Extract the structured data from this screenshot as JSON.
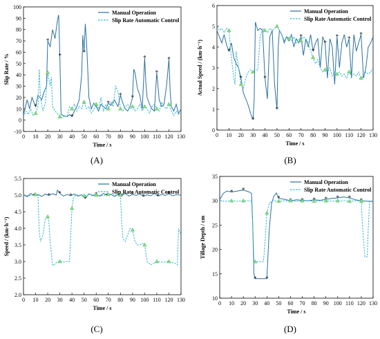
{
  "figure": {
    "panel_labels": [
      "(A)",
      "(B)",
      "(C)",
      "(D)"
    ]
  },
  "colors": {
    "manual": "#2a6f9e",
    "auto": "#35b6d4",
    "marker_manual": "#c0224f",
    "marker_auto": "#7ddc7d"
  },
  "legend": {
    "manual": "Manual Operation",
    "auto": "Slip Rate Automatic Control"
  },
  "chart_data": [
    {
      "type": "line",
      "panel": "(A)",
      "title": "",
      "xlabel": "Time / s",
      "ylabel": "Slip Rate / %",
      "xlim": [
        0,
        130
      ],
      "ylim": [
        -10,
        100
      ],
      "xticks": [
        0,
        10,
        20,
        30,
        40,
        50,
        60,
        70,
        80,
        90,
        100,
        110,
        120,
        130
      ],
      "yticks": [
        -10,
        0,
        10,
        20,
        30,
        40,
        50,
        60,
        70,
        80,
        90,
        100
      ],
      "legend_position": "top-right",
      "series": [
        {
          "name": "Manual Operation",
          "x": [
            0,
            3,
            5,
            7,
            10,
            12,
            15,
            17,
            19,
            20,
            22,
            24,
            26,
            28,
            29,
            30,
            31,
            33,
            36,
            38,
            40,
            42,
            44,
            46,
            48,
            49,
            50,
            51,
            52,
            54,
            56,
            58,
            60,
            62,
            64,
            66,
            68,
            70,
            72,
            75,
            78,
            80,
            82,
            84,
            86,
            88,
            90,
            91,
            92,
            94,
            96,
            98,
            100,
            101,
            102,
            104,
            106,
            108,
            110,
            112,
            114,
            116,
            118,
            120,
            121,
            122,
            124,
            126,
            128,
            130
          ],
          "y": [
            5,
            18,
            10,
            20,
            12,
            22,
            18,
            25,
            30,
            70,
            65,
            80,
            72,
            88,
            93,
            57,
            5,
            4,
            3,
            5,
            3,
            8,
            12,
            18,
            40,
            75,
            60,
            85,
            70,
            20,
            10,
            15,
            12,
            8,
            14,
            12,
            10,
            15,
            13,
            18,
            12,
            22,
            15,
            10,
            8,
            12,
            20,
            45,
            42,
            28,
            22,
            10,
            55,
            33,
            20,
            14,
            10,
            8,
            42,
            18,
            12,
            14,
            30,
            54,
            26,
            12,
            8,
            14,
            6,
            10
          ]
        },
        {
          "name": "Slip Rate Automatic Control",
          "x": [
            0,
            2,
            4,
            6,
            8,
            10,
            12,
            13,
            14,
            16,
            18,
            20,
            22,
            23,
            24,
            26,
            28,
            30,
            32,
            34,
            36,
            38,
            40,
            42,
            44,
            46,
            48,
            50,
            52,
            54,
            56,
            58,
            60,
            62,
            64,
            66,
            68,
            70,
            72,
            74,
            76,
            78,
            80,
            82,
            84,
            86,
            88,
            90,
            92,
            94,
            96,
            98,
            100,
            102,
            104,
            106,
            108,
            110,
            112,
            114,
            116,
            118,
            120,
            122,
            124,
            126,
            128,
            130
          ],
          "y": [
            3,
            8,
            5,
            10,
            4,
            6,
            12,
            45,
            20,
            8,
            15,
            42,
            30,
            38,
            12,
            8,
            6,
            3,
            2,
            4,
            3,
            12,
            10,
            14,
            8,
            12,
            10,
            16,
            10,
            12,
            6,
            9,
            14,
            10,
            20,
            8,
            14,
            10,
            16,
            12,
            30,
            25,
            10,
            8,
            12,
            14,
            10,
            12,
            8,
            10,
            14,
            8,
            12,
            10,
            6,
            12,
            14,
            10,
            8,
            16,
            12,
            10,
            14,
            8,
            4,
            8,
            5,
            6
          ]
        }
      ]
    },
    {
      "type": "line",
      "panel": "(B)",
      "title": "",
      "xlabel": "Time / s",
      "ylabel": "Actual Speed / (km·h⁻¹)",
      "xlim": [
        0,
        130
      ],
      "ylim": [
        0,
        6
      ],
      "xticks": [
        0,
        10,
        20,
        30,
        40,
        50,
        60,
        70,
        80,
        90,
        100,
        110,
        120,
        130
      ],
      "yticks": [
        0,
        1,
        2,
        3,
        4,
        5,
        6
      ],
      "legend_position": "top-right",
      "series": [
        {
          "name": "Manual Operation",
          "x": [
            0,
            2,
            4,
            6,
            8,
            10,
            12,
            14,
            16,
            18,
            20,
            22,
            24,
            26,
            28,
            30,
            31,
            32,
            34,
            36,
            38,
            40,
            42,
            44,
            46,
            48,
            50,
            51,
            52,
            54,
            56,
            58,
            60,
            62,
            64,
            66,
            68,
            70,
            72,
            74,
            76,
            78,
            80,
            82,
            84,
            86,
            88,
            90,
            92,
            94,
            96,
            98,
            100,
            102,
            104,
            106,
            108,
            110,
            112,
            114,
            116,
            118,
            120,
            122,
            124,
            126,
            128,
            130
          ],
          "y": [
            4.8,
            4.5,
            4.2,
            4.6,
            4.1,
            3.8,
            4.2,
            3.5,
            3.2,
            3.0,
            2.5,
            1.8,
            1.5,
            1.2,
            0.8,
            0.5,
            1.5,
            5.2,
            4.8,
            4.9,
            4.8,
            2.5,
            1.5,
            4.5,
            4.8,
            2.2,
            1.0,
            4.0,
            4.8,
            4.6,
            4.2,
            4.5,
            4.3,
            4.6,
            4.0,
            4.4,
            4.2,
            4.5,
            3.6,
            4.4,
            4.0,
            4.6,
            3.8,
            4.2,
            4.4,
            3.0,
            4.5,
            4.2,
            2.5,
            4.4,
            4.0,
            2.2,
            4.5,
            3.0,
            4.2,
            4.6,
            4.0,
            4.4,
            2.5,
            4.6,
            3.8,
            4.2,
            4.6,
            2.5,
            3.0,
            4.0,
            4.2,
            4.5
          ]
        },
        {
          "name": "Slip Rate Automatic Control",
          "x": [
            0,
            2,
            4,
            6,
            8,
            10,
            12,
            14,
            15,
            16,
            18,
            20,
            22,
            24,
            26,
            28,
            30,
            32,
            34,
            36,
            38,
            40,
            42,
            44,
            46,
            48,
            50,
            52,
            54,
            56,
            58,
            60,
            62,
            64,
            66,
            68,
            70,
            72,
            74,
            76,
            78,
            80,
            82,
            84,
            86,
            88,
            90,
            92,
            94,
            96,
            98,
            100,
            102,
            104,
            106,
            108,
            110,
            112,
            114,
            116,
            118,
            120,
            122,
            124,
            126,
            128,
            130
          ],
          "y": [
            5.0,
            4.8,
            4.9,
            4.7,
            4.9,
            4.8,
            3.5,
            2.5,
            2.2,
            3.8,
            3.0,
            2.2,
            2.0,
            2.5,
            2.8,
            2.9,
            2.8,
            2.9,
            2.9,
            4.5,
            4.9,
            4.8,
            4.7,
            4.9,
            4.8,
            4.9,
            5.0,
            4.8,
            4.6,
            4.3,
            4.5,
            4.4,
            4.3,
            4.5,
            4.2,
            4.4,
            4.3,
            4.5,
            4.4,
            4.2,
            3.8,
            3.5,
            3.2,
            3.4,
            3.0,
            2.8,
            2.9,
            2.8,
            3.0,
            2.6,
            2.8,
            2.7,
            2.8,
            2.6,
            2.7,
            2.5,
            2.8,
            2.6,
            2.7,
            2.6,
            2.8,
            2.5,
            2.6,
            2.8,
            2.7,
            2.8,
            3.0
          ]
        }
      ]
    },
    {
      "type": "line",
      "panel": "(C)",
      "title": "",
      "xlabel": "Time / s",
      "ylabel": "Speed / (km·h⁻¹)",
      "xlim": [
        0,
        130
      ],
      "ylim": [
        2.0,
        5.5
      ],
      "xticks": [
        0,
        10,
        20,
        30,
        40,
        50,
        60,
        70,
        80,
        90,
        100,
        110,
        120,
        130
      ],
      "yticks": [
        2.0,
        2.5,
        3.0,
        3.5,
        4.0,
        4.5,
        5.0,
        5.5
      ],
      "legend_position": "top-right",
      "series": [
        {
          "name": "Manual Operation",
          "x": [
            0,
            3,
            6,
            9,
            12,
            15,
            18,
            21,
            24,
            27,
            28,
            30,
            33,
            36,
            39,
            42,
            45,
            48,
            51,
            54,
            57,
            60,
            63,
            66,
            69,
            72,
            75,
            78,
            81,
            84,
            87,
            90,
            93,
            96,
            99,
            102,
            105,
            108,
            111,
            114,
            117,
            120,
            123,
            126,
            130
          ],
          "y": [
            5.0,
            4.95,
            5.05,
            4.98,
            5.02,
            4.96,
            5.03,
            4.99,
            5.04,
            5.0,
            5.15,
            5.05,
            4.97,
            5.02,
            4.98,
            5.03,
            4.97,
            5.01,
            4.9,
            5.04,
            4.98,
            5.02,
            4.97,
            5.05,
            4.99,
            5.03,
            4.96,
            5.02,
            4.98,
            5.05,
            4.97,
            5.02,
            4.99,
            5.04,
            4.96,
            5.01,
            4.98,
            5.05,
            4.97,
            5.02,
            4.99,
            5.04,
            4.98,
            5.01,
            5.0
          ]
        },
        {
          "name": "Slip Rate Automatic Control",
          "x": [
            0,
            5,
            10,
            12,
            13,
            14,
            16,
            18,
            20,
            21,
            22,
            24,
            26,
            28,
            30,
            32,
            34,
            36,
            38,
            40,
            41,
            43,
            46,
            50,
            55,
            60,
            65,
            70,
            75,
            80,
            81,
            82,
            84,
            86,
            88,
            90,
            92,
            94,
            96,
            98,
            100,
            102,
            105,
            110,
            115,
            120,
            125,
            127,
            128,
            130
          ],
          "y": [
            5.0,
            4.98,
            5.02,
            5.0,
            3.9,
            3.6,
            3.8,
            4.3,
            4.35,
            4.2,
            3.6,
            2.88,
            2.92,
            3.0,
            3.0,
            3.0,
            2.98,
            3.0,
            3.0,
            4.6,
            4.9,
            5.0,
            5.0,
            4.98,
            5.02,
            5.0,
            4.98,
            5.02,
            5.0,
            5.0,
            4.2,
            3.7,
            3.6,
            3.8,
            4.0,
            3.95,
            3.6,
            3.5,
            3.5,
            3.55,
            3.5,
            3.0,
            2.9,
            3.0,
            2.98,
            3.0,
            2.95,
            2.9,
            4.0,
            3.8
          ]
        }
      ]
    },
    {
      "type": "line",
      "panel": "(D)",
      "title": "",
      "xlabel": "Time / s",
      "ylabel": "Tillage Depth / cm",
      "xlim": [
        0,
        130
      ],
      "ylim": [
        10,
        35
      ],
      "xticks": [
        0,
        10,
        20,
        30,
        40,
        50,
        60,
        70,
        80,
        90,
        100,
        110,
        120,
        130
      ],
      "yticks": [
        10,
        15,
        20,
        25,
        30,
        35
      ],
      "legend_position": "top-right",
      "series": [
        {
          "name": "Manual Operation",
          "x": [
            0,
            3,
            6,
            10,
            15,
            20,
            25,
            27,
            28,
            29,
            30,
            35,
            40,
            42,
            44,
            46,
            48,
            50,
            55,
            60,
            65,
            70,
            75,
            80,
            85,
            90,
            95,
            100,
            105,
            110,
            115,
            120,
            125,
            130
          ],
          "y": [
            30.2,
            31.5,
            32.0,
            31.8,
            32.0,
            32.2,
            31.8,
            31.5,
            25.0,
            15.0,
            14.0,
            14.0,
            14.0,
            24.0,
            29.5,
            31.0,
            31.6,
            30.5,
            30.3,
            30.0,
            30.2,
            30.1,
            30.0,
            30.2,
            30.1,
            30.3,
            30.5,
            30.6,
            30.8,
            30.6,
            30.2,
            30.0,
            29.9,
            29.9
          ]
        },
        {
          "name": "Slip Rate Automatic Control",
          "x": [
            0,
            5,
            10,
            15,
            20,
            25,
            27,
            28,
            29,
            30,
            35,
            37,
            38,
            40,
            42,
            45,
            50,
            55,
            60,
            65,
            70,
            75,
            80,
            85,
            90,
            95,
            100,
            105,
            110,
            115,
            118,
            120,
            121,
            123,
            125,
            126,
            127,
            130
          ],
          "y": [
            30.0,
            29.9,
            30.0,
            29.9,
            30.0,
            30.0,
            29.9,
            25.0,
            18.0,
            17.5,
            17.5,
            17.5,
            20.0,
            27.5,
            29.5,
            30.0,
            29.9,
            30.0,
            30.0,
            29.9,
            30.0,
            30.0,
            29.9,
            30.0,
            30.0,
            29.9,
            30.0,
            30.0,
            29.9,
            30.0,
            30.0,
            29.9,
            25.0,
            18.5,
            18.5,
            25.0,
            29.8,
            29.8
          ]
        }
      ]
    }
  ]
}
